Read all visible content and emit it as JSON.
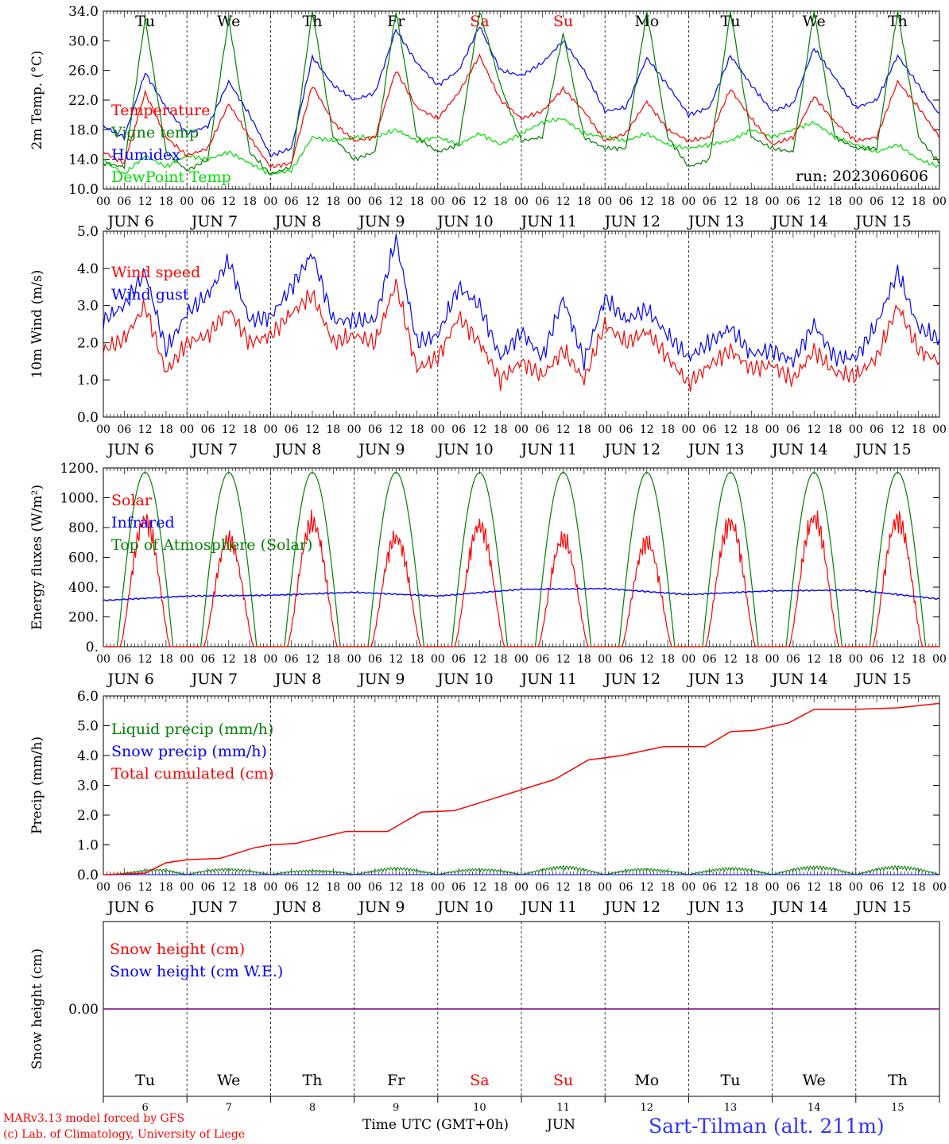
{
  "colors": {
    "temperature": "#ff0000",
    "vigne": "#008000",
    "humidex": "#0000ff",
    "dewpoint": "#00dd00",
    "weekend": "#ff0000",
    "weekday": "#000000",
    "snowline": "#7f007f",
    "station": "#3333ff"
  },
  "axis": {
    "hour_labels": [
      "00",
      "06",
      "12",
      "18"
    ],
    "end_label": "00",
    "date_labels": [
      "JUN  6",
      "JUN  7",
      "JUN  8",
      "JUN  9",
      "JUN 10",
      "JUN 11",
      "JUN 12",
      "JUN 13",
      "JUN 14",
      "JUN 15"
    ],
    "weekdays": [
      {
        "label": "Tu",
        "weekend": false
      },
      {
        "label": "We",
        "weekend": false
      },
      {
        "label": "Th",
        "weekend": false
      },
      {
        "label": "Fr",
        "weekend": false
      },
      {
        "label": "Sa",
        "weekend": true
      },
      {
        "label": "Su",
        "weekend": true
      },
      {
        "label": "Mo",
        "weekend": false
      },
      {
        "label": "Tu",
        "weekend": false
      },
      {
        "label": "We",
        "weekend": false
      },
      {
        "label": "Th",
        "weekend": false
      }
    ],
    "day_numbers": [
      "6",
      "7",
      "8",
      "9",
      "10",
      "11",
      "12",
      "13",
      "14",
      "15"
    ],
    "bottom_title": "Time UTC (GMT+0h)",
    "bottom_month": "JUN"
  },
  "footer": {
    "model": "MARv3.13 model forced by GFS",
    "copyright": "(c) Lab. of Climatology, University of Liege",
    "station": "Sart-Tilman (alt. 211m)"
  },
  "chart_data": [
    {
      "type": "line",
      "ylabel": "2m Temp. (°C)",
      "ylim": [
        10,
        34
      ],
      "yticks": [
        "10.0",
        "14.0",
        "18.0",
        "22.0",
        "26.0",
        "30.0",
        "34.0"
      ],
      "annotation": "run: 2023060606",
      "x_unit": "days since 2023-06-06 00 UTC",
      "x": [
        0,
        0.25,
        0.5,
        0.75,
        1,
        1.25,
        1.5,
        1.75,
        2,
        2.25,
        2.5,
        2.75,
        3,
        3.25,
        3.5,
        3.75,
        4,
        4.25,
        4.5,
        4.75,
        5,
        5.25,
        5.5,
        5.75,
        6,
        6.25,
        6.5,
        6.75,
        7,
        7.25,
        7.5,
        7.75,
        8,
        8.25,
        8.5,
        8.75,
        9,
        9.25,
        9.5,
        9.75,
        10
      ],
      "series": [
        {
          "name": "Temperature",
          "color": "#ff0000",
          "values": [
            15,
            13.5,
            23,
            17,
            14.5,
            15.5,
            21.5,
            17,
            13,
            13.5,
            24,
            19,
            16.5,
            17,
            26,
            21,
            19.5,
            23,
            28,
            22,
            19.5,
            20.5,
            23.5,
            20.5,
            16.5,
            17.5,
            21.8,
            18,
            16.5,
            17,
            23.5,
            19.5,
            16,
            17,
            22.5,
            19,
            16.5,
            17,
            24.5,
            21,
            17
          ]
        },
        {
          "name": "Vigne temp",
          "color": "#008000",
          "values": [
            13.5,
            13,
            33,
            15,
            12.5,
            14,
            33,
            15,
            12,
            13,
            34,
            17,
            14,
            15,
            34,
            17,
            15,
            16,
            34,
            24,
            16.5,
            17,
            31,
            17,
            15.5,
            15.5,
            34,
            17,
            13,
            14,
            34,
            17,
            15.5,
            15,
            34,
            17,
            15.5,
            15.5,
            34,
            17,
            13.5
          ]
        },
        {
          "name": "Humidex",
          "color": "#0000ff",
          "values": [
            18.5,
            17,
            25.7,
            21,
            17.5,
            18.5,
            24.5,
            20,
            14.5,
            15.5,
            27.8,
            24,
            22,
            23,
            31.5,
            27,
            24,
            26,
            32,
            26,
            25.3,
            27,
            30,
            26,
            20.5,
            21,
            27.7,
            24,
            20,
            21,
            28,
            24,
            20.5,
            21.5,
            29,
            25,
            21,
            22,
            28,
            24,
            20
          ]
        },
        {
          "name": "DewPoint Temp",
          "color": "#00dd00",
          "values": [
            14,
            12,
            14.5,
            13,
            14.5,
            14,
            15,
            13.5,
            12,
            12.5,
            17,
            16.5,
            17,
            17,
            18,
            16.5,
            17,
            16,
            17.5,
            16,
            17.5,
            19,
            19.5,
            17.5,
            17,
            16.5,
            17.5,
            16,
            15.5,
            16,
            16.5,
            18,
            17,
            18,
            19,
            17,
            16,
            15,
            16,
            14,
            13
          ]
        }
      ]
    },
    {
      "type": "line",
      "ylabel": "10m Wind (m/s)",
      "ylim": [
        0,
        5
      ],
      "yticks": [
        "0.0",
        "1.0",
        "2.0",
        "3.0",
        "4.0",
        "5.0"
      ],
      "x_unit": "days since 2023-06-06 00 UTC",
      "x": [
        0,
        0.25,
        0.5,
        0.75,
        1,
        1.25,
        1.5,
        1.75,
        2,
        2.25,
        2.5,
        2.75,
        3,
        3.25,
        3.5,
        3.75,
        4,
        4.25,
        4.5,
        4.75,
        5,
        5.25,
        5.5,
        5.75,
        6,
        6.25,
        6.5,
        6.75,
        7,
        7.25,
        7.5,
        7.75,
        8,
        8.25,
        8.5,
        8.75,
        9,
        9.25,
        9.5,
        9.75,
        10
      ],
      "series": [
        {
          "name": "Wind speed",
          "color": "#ff0000",
          "values": [
            1.8,
            2.1,
            3.0,
            1.2,
            2.0,
            2.2,
            2.9,
            2.0,
            2.2,
            2.8,
            3.3,
            2.0,
            2.2,
            2.0,
            3.6,
            1.3,
            1.6,
            2.7,
            2.0,
            1.0,
            1.5,
            1.1,
            1.8,
            1.0,
            2.5,
            2.0,
            2.3,
            1.6,
            0.9,
            1.4,
            1.8,
            1.3,
            1.4,
            1.0,
            1.8,
            1.2,
            1.1,
            1.6,
            3.0,
            1.8,
            1.5
          ]
        },
        {
          "name": "Wind gust",
          "color": "#0000ff",
          "values": [
            2.6,
            3.0,
            3.9,
            1.8,
            2.8,
            3.3,
            4.2,
            2.6,
            2.7,
            3.5,
            4.4,
            2.6,
            2.6,
            2.6,
            4.8,
            2.0,
            2.2,
            3.5,
            3.0,
            1.6,
            2.3,
            1.6,
            3.2,
            1.5,
            3.2,
            2.6,
            2.9,
            2.2,
            1.6,
            2.0,
            2.4,
            1.7,
            1.8,
            1.5,
            2.5,
            1.6,
            1.6,
            2.5,
            3.9,
            2.4,
            2.1
          ]
        }
      ]
    },
    {
      "type": "line",
      "ylabel": "Energy fluxes (W/m²)",
      "ylim": [
        0,
        1200
      ],
      "yticks": [
        "0.",
        "200.",
        "400.",
        "600.",
        "800.",
        "1000.",
        "1200."
      ],
      "x_unit": "days since 2023-06-06 00 UTC",
      "solar_peaks": [
        850,
        720,
        830,
        730,
        810,
        720,
        700,
        830,
        860,
        850
      ],
      "toa_peak": 1170,
      "series": [
        {
          "name": "Solar",
          "color": "#ff0000"
        },
        {
          "name": "Infrared",
          "color": "#0000ff",
          "x": [
            0,
            1,
            2,
            3,
            4,
            5,
            6,
            7,
            8,
            9,
            10
          ],
          "values": [
            310,
            340,
            345,
            365,
            340,
            385,
            390,
            350,
            375,
            380,
            320
          ]
        },
        {
          "name": "Top of Atmosphere (Solar)",
          "color": "#008000"
        }
      ]
    },
    {
      "type": "line",
      "ylabel": "Precip (mm/h)",
      "ylim": [
        0,
        6
      ],
      "yticks": [
        "0.0",
        "1.0",
        "2.0",
        "3.0",
        "4.0",
        "5.0",
        "6.0"
      ],
      "x_unit": "days since 2023-06-06 00 UTC",
      "series": [
        {
          "name": "Liquid precip (mm/h)",
          "color": "#008000",
          "x": [
            0,
            0.75,
            1.75,
            2.5,
            3.5,
            4.6,
            5.5,
            6.6,
            7.7,
            8.6
          ],
          "values": [
            0,
            0.25,
            0.2,
            0.15,
            0.25,
            0.2,
            0.3,
            0.2,
            0.25,
            0.3
          ]
        },
        {
          "name": "Snow precip (mm/h)",
          "color": "#0000ff",
          "values": [
            0
          ]
        },
        {
          "name": "Total cumulated (cm)",
          "color": "#ff0000",
          "x": [
            0,
            0.5,
            0.75,
            1,
            1.4,
            1.8,
            2,
            2.3,
            2.9,
            3.4,
            3.8,
            4.2,
            4.6,
            5,
            5.4,
            5.8,
            6.2,
            6.7,
            7.2,
            7.5,
            7.8,
            8.2,
            8.5,
            9,
            9.5,
            10
          ],
          "values": [
            0,
            0.05,
            0.4,
            0.5,
            0.55,
            0.9,
            1.0,
            1.05,
            1.45,
            1.45,
            2.1,
            2.15,
            2.5,
            2.85,
            3.2,
            3.85,
            4.0,
            4.3,
            4.3,
            4.8,
            4.85,
            5.1,
            5.55,
            5.55,
            5.6,
            5.75
          ]
        }
      ]
    },
    {
      "type": "line",
      "ylabel": "Snow height (cm)",
      "yticks": [
        "0.00"
      ],
      "series": [
        {
          "name": "Snow height (cm)",
          "color": "#ff0000",
          "values": [
            0
          ]
        },
        {
          "name": "Snow height (cm W.E.)",
          "color": "#0000ff",
          "values": [
            0
          ]
        }
      ]
    }
  ]
}
